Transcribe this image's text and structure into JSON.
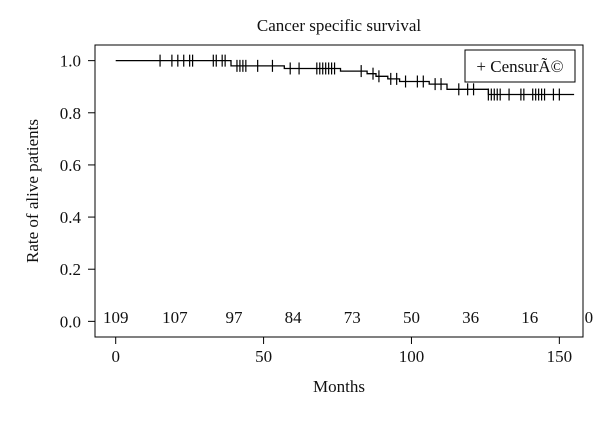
{
  "chart_data": {
    "type": "line",
    "title": "Cancer specific survival",
    "xlabel": "Months",
    "ylabel": "Rate of alive patients",
    "xlim": [
      -7,
      158
    ],
    "ylim": [
      -0.06,
      1.06
    ],
    "xticks": [
      0,
      50,
      100,
      150
    ],
    "yticks": [
      0.0,
      0.2,
      0.4,
      0.6,
      0.8,
      1.0
    ],
    "ytick_labels": [
      "0.0",
      "0.2",
      "0.4",
      "0.6",
      "0.8",
      "1.0"
    ],
    "legend": {
      "label": "+ CensurÃ©",
      "position": "top-right"
    },
    "grid": false,
    "series": [
      {
        "steps": [
          {
            "x": 0,
            "y": 1.0
          },
          {
            "x": 39,
            "y": 0.98
          },
          {
            "x": 57,
            "y": 0.97
          },
          {
            "x": 76,
            "y": 0.96
          },
          {
            "x": 85,
            "y": 0.95
          },
          {
            "x": 88,
            "y": 0.94
          },
          {
            "x": 92,
            "y": 0.93
          },
          {
            "x": 96,
            "y": 0.92
          },
          {
            "x": 106,
            "y": 0.91
          },
          {
            "x": 112,
            "y": 0.89
          },
          {
            "x": 126,
            "y": 0.87
          },
          {
            "x": 155,
            "y": 0.87
          }
        ],
        "censored": [
          15,
          19,
          21,
          23,
          25,
          26,
          33,
          34,
          36,
          37,
          41,
          42,
          43,
          44,
          48,
          53,
          59,
          62,
          68,
          69,
          70,
          71,
          72,
          73,
          74,
          83,
          87,
          89,
          93,
          95,
          98,
          102,
          104,
          108,
          110,
          116,
          119,
          121,
          126,
          127,
          128,
          129,
          130,
          133,
          137,
          138,
          141,
          142,
          143,
          144,
          145,
          148,
          150
        ]
      }
    ],
    "risk_table": {
      "times": [
        0,
        20,
        40,
        60,
        80,
        100,
        120,
        140,
        160
      ],
      "counts": [
        "109",
        "107",
        "97",
        "84",
        "73",
        "50",
        "36",
        "16",
        "0"
      ]
    }
  }
}
